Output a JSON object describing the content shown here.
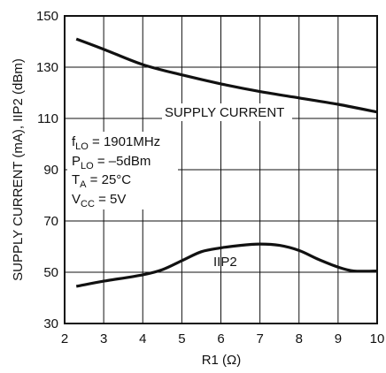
{
  "chart_data": {
    "type": "line",
    "title": "",
    "xlabel": "R1 (Ω)",
    "ylabel": "SUPPLY CURRENT (mA), IIP2 (dBm)",
    "xlim": [
      2,
      10
    ],
    "ylim": [
      30,
      150
    ],
    "x_ticks": [
      2,
      3,
      4,
      5,
      6,
      7,
      8,
      9,
      10
    ],
    "y_ticks": [
      30,
      50,
      70,
      90,
      110,
      130,
      150
    ],
    "grid": true,
    "series": [
      {
        "name": "SUPPLY CURRENT",
        "x": [
          2.3,
          3,
          4,
          5,
          6,
          7,
          8,
          9,
          10
        ],
        "y": [
          141,
          137,
          131,
          127,
          123.5,
          120.5,
          118,
          115.5,
          112.5
        ]
      },
      {
        "name": "IIP2",
        "x": [
          2.3,
          3,
          4,
          4.5,
          5,
          5.5,
          6,
          6.5,
          7,
          7.5,
          8,
          8.5,
          9,
          9.4,
          10
        ],
        "y": [
          44.5,
          46.5,
          49,
          51,
          54.5,
          58,
          59.5,
          60.5,
          61,
          60.5,
          58.5,
          55,
          52,
          50.5,
          50.5
        ]
      }
    ],
    "annotations": {
      "line1_main": "f",
      "line1_sub": "LO",
      "line1_rest": " = 1901MHz",
      "line2_main": "P",
      "line2_sub": "LO",
      "line2_rest": " = –5dBm",
      "line3_main": "T",
      "line3_sub": "A",
      "line3_rest": " = 25°C",
      "line4_main": "V",
      "line4_sub": "CC",
      "line4_rest": " = 5V"
    }
  }
}
